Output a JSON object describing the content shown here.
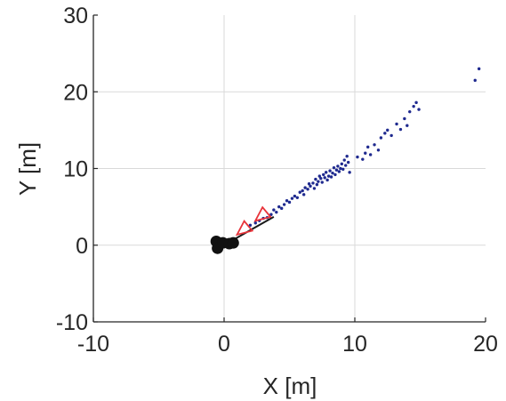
{
  "chart_data": {
    "type": "scatter",
    "title": "",
    "xlabel": "X [m]",
    "ylabel": "Y [m]",
    "xlim": [
      -10,
      20
    ],
    "ylim": [
      -10,
      30
    ],
    "xticks": [
      -10,
      0,
      10,
      20
    ],
    "yticks": [
      -10,
      0,
      10,
      20,
      30
    ],
    "grid": true,
    "colors": {
      "points": "#1f2a8f",
      "triangles": "#e8333a",
      "circles": "#111111",
      "line": "#1a1a1a",
      "grid": "#d9d9d9",
      "axes": "#262626"
    },
    "line": [
      [
        0.6,
        0.6
      ],
      [
        3.8,
        3.7
      ]
    ],
    "circle_markers": [
      [
        -0.6,
        0.5
      ],
      [
        -0.5,
        -0.4
      ],
      [
        -0.1,
        0.3
      ],
      [
        0.4,
        0.2
      ],
      [
        0.7,
        0.3
      ]
    ],
    "triangle_markers": [
      [
        1.6,
        2.1
      ],
      [
        3.0,
        3.9
      ]
    ],
    "points": [
      [
        2.0,
        2.6
      ],
      [
        2.4,
        2.9
      ],
      [
        2.7,
        3.2
      ],
      [
        3.0,
        3.5
      ],
      [
        3.3,
        3.6
      ],
      [
        3.6,
        4.0
      ],
      [
        3.8,
        4.6
      ],
      [
        4.0,
        4.3
      ],
      [
        4.2,
        5.0
      ],
      [
        4.4,
        4.8
      ],
      [
        4.6,
        5.3
      ],
      [
        4.8,
        5.8
      ],
      [
        5.0,
        5.6
      ],
      [
        5.2,
        6.1
      ],
      [
        5.4,
        6.4
      ],
      [
        5.6,
        6.2
      ],
      [
        5.8,
        6.9
      ],
      [
        6.0,
        7.1
      ],
      [
        6.1,
        6.6
      ],
      [
        6.2,
        7.5
      ],
      [
        6.4,
        7.3
      ],
      [
        6.5,
        8.0
      ],
      [
        6.6,
        7.7
      ],
      [
        6.8,
        8.1
      ],
      [
        6.9,
        7.4
      ],
      [
        7.0,
        8.6
      ],
      [
        7.1,
        7.9
      ],
      [
        7.2,
        8.3
      ],
      [
        7.3,
        9.0
      ],
      [
        7.4,
        8.7
      ],
      [
        7.5,
        8.2
      ],
      [
        7.6,
        9.2
      ],
      [
        7.7,
        8.8
      ],
      [
        7.8,
        9.5
      ],
      [
        7.9,
        8.5
      ],
      [
        8.0,
        9.0
      ],
      [
        8.1,
        9.7
      ],
      [
        8.2,
        8.9
      ],
      [
        8.3,
        9.4
      ],
      [
        8.4,
        10.1
      ],
      [
        8.5,
        9.2
      ],
      [
        8.6,
        9.8
      ],
      [
        8.7,
        10.3
      ],
      [
        8.8,
        9.6
      ],
      [
        8.9,
        10.0
      ],
      [
        9.0,
        10.6
      ],
      [
        9.1,
        9.9
      ],
      [
        9.2,
        11.1
      ],
      [
        9.3,
        10.4
      ],
      [
        9.4,
        11.6
      ],
      [
        9.5,
        10.8
      ],
      [
        9.6,
        9.5
      ],
      [
        10.2,
        11.5
      ],
      [
        10.6,
        11.2
      ],
      [
        10.8,
        12.0
      ],
      [
        11.0,
        12.8
      ],
      [
        11.2,
        11.8
      ],
      [
        11.5,
        13.1
      ],
      [
        11.8,
        12.4
      ],
      [
        12.0,
        14.0
      ],
      [
        12.3,
        14.6
      ],
      [
        12.5,
        15.0
      ],
      [
        12.8,
        14.3
      ],
      [
        13.2,
        15.8
      ],
      [
        13.5,
        15.1
      ],
      [
        13.8,
        16.5
      ],
      [
        14.0,
        15.6
      ],
      [
        14.2,
        17.4
      ],
      [
        14.5,
        18.1
      ],
      [
        14.7,
        18.6
      ],
      [
        14.9,
        17.7
      ],
      [
        19.2,
        21.5
      ],
      [
        19.5,
        23.0
      ]
    ]
  }
}
